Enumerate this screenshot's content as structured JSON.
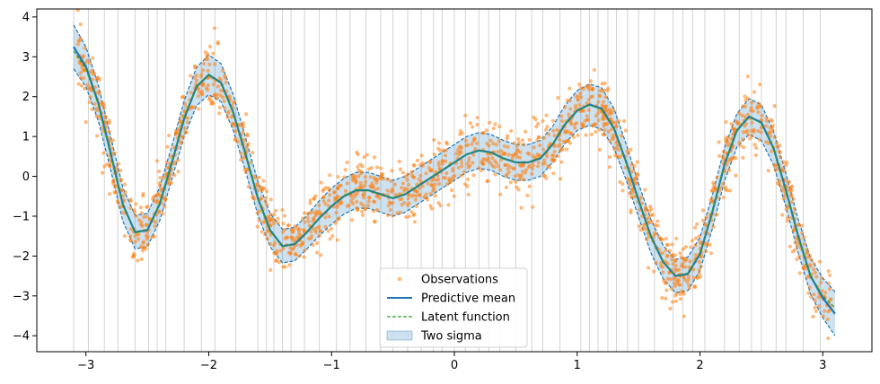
{
  "chart_data": {
    "type": "scatter",
    "title": "",
    "xlabel": "",
    "ylabel": "",
    "xlim": [
      -3.4,
      3.4
    ],
    "ylim": [
      -4.4,
      4.2
    ],
    "x_ticks": [
      -3,
      -2,
      -1,
      0,
      1,
      2,
      3
    ],
    "x_tick_labels": [
      "−3",
      "−2",
      "−1",
      "0",
      "1",
      "2",
      "3"
    ],
    "y_ticks": [
      -4,
      -3,
      -2,
      -1,
      0,
      1,
      2,
      3,
      4
    ],
    "y_tick_labels": [
      "−4",
      "−3",
      "−2",
      "−1",
      "0",
      "1",
      "2",
      "3",
      "4"
    ],
    "grid": false,
    "legend_position": "bottom-center",
    "colors": {
      "observations": "#ff7f0e",
      "mean": "#1f77b4",
      "latent": "#2ca02c",
      "band": "#1f77b4",
      "inducing_lines": "#9e9e9e"
    },
    "series": [
      {
        "name": "Observations",
        "kind": "scatter",
        "note": "dense noisy samples scattered around the latent function, approx. 2000 points"
      },
      {
        "name": "Predictive mean",
        "kind": "line",
        "x": [
          -3.1,
          -3.0,
          -2.9,
          -2.8,
          -2.7,
          -2.6,
          -2.5,
          -2.4,
          -2.3,
          -2.2,
          -2.1,
          -2.0,
          -1.9,
          -1.8,
          -1.7,
          -1.6,
          -1.5,
          -1.4,
          -1.3,
          -1.2,
          -1.1,
          -1.0,
          -0.9,
          -0.8,
          -0.7,
          -0.6,
          -0.5,
          -0.4,
          -0.3,
          -0.2,
          -0.1,
          0.0,
          0.1,
          0.2,
          0.3,
          0.4,
          0.5,
          0.6,
          0.7,
          0.8,
          0.9,
          1.0,
          1.1,
          1.2,
          1.3,
          1.4,
          1.5,
          1.6,
          1.7,
          1.8,
          1.9,
          2.0,
          2.1,
          2.2,
          2.3,
          2.4,
          2.5,
          2.6,
          2.7,
          2.8,
          2.9,
          3.0,
          3.1
        ],
        "y": [
          3.25,
          2.75,
          1.85,
          0.6,
          -0.7,
          -1.4,
          -1.35,
          -0.7,
          0.35,
          1.45,
          2.25,
          2.55,
          2.35,
          1.6,
          0.55,
          -0.55,
          -1.35,
          -1.75,
          -1.7,
          -1.4,
          -1.05,
          -0.75,
          -0.5,
          -0.35,
          -0.35,
          -0.45,
          -0.55,
          -0.45,
          -0.25,
          -0.05,
          0.15,
          0.35,
          0.55,
          0.65,
          0.6,
          0.45,
          0.35,
          0.35,
          0.45,
          0.8,
          1.3,
          1.65,
          1.8,
          1.7,
          1.2,
          0.35,
          -0.6,
          -1.5,
          -2.15,
          -2.5,
          -2.45,
          -1.95,
          -0.9,
          0.3,
          1.15,
          1.5,
          1.35,
          0.7,
          -0.35,
          -1.5,
          -2.5,
          -3.05,
          -3.45
        ]
      },
      {
        "name": "Latent function",
        "kind": "line",
        "style": "dashed",
        "x": [
          -3.1,
          -3.0,
          -2.9,
          -2.8,
          -2.7,
          -2.6,
          -2.5,
          -2.4,
          -2.3,
          -2.2,
          -2.1,
          -2.0,
          -1.9,
          -1.8,
          -1.7,
          -1.6,
          -1.5,
          -1.4,
          -1.3,
          -1.2,
          -1.1,
          -1.0,
          -0.9,
          -0.8,
          -0.7,
          -0.6,
          -0.5,
          -0.4,
          -0.3,
          -0.2,
          -0.1,
          0.0,
          0.1,
          0.2,
          0.3,
          0.4,
          0.5,
          0.6,
          0.7,
          0.8,
          0.9,
          1.0,
          1.1,
          1.2,
          1.3,
          1.4,
          1.5,
          1.6,
          1.7,
          1.8,
          1.9,
          2.0,
          2.1,
          2.2,
          2.3,
          2.4,
          2.5,
          2.6,
          2.7,
          2.8,
          2.9,
          3.0,
          3.1
        ],
        "y": [
          3.15,
          2.7,
          1.8,
          0.55,
          -0.72,
          -1.42,
          -1.33,
          -0.68,
          0.38,
          1.48,
          2.27,
          2.55,
          2.33,
          1.58,
          0.52,
          -0.57,
          -1.37,
          -1.76,
          -1.69,
          -1.39,
          -1.04,
          -0.74,
          -0.49,
          -0.34,
          -0.36,
          -0.46,
          -0.54,
          -0.44,
          -0.24,
          -0.04,
          0.16,
          0.36,
          0.56,
          0.64,
          0.59,
          0.44,
          0.34,
          0.36,
          0.47,
          0.82,
          1.32,
          1.66,
          1.79,
          1.68,
          1.18,
          0.33,
          -0.62,
          -1.52,
          -2.16,
          -2.49,
          -2.43,
          -1.93,
          -0.88,
          0.32,
          1.16,
          1.49,
          1.33,
          0.68,
          -0.37,
          -1.52,
          -2.48,
          -3.0,
          -3.3
        ]
      },
      {
        "name": "Two sigma",
        "kind": "band",
        "x": [
          -3.1,
          -3.0,
          -2.9,
          -2.8,
          -2.7,
          -2.6,
          -2.5,
          -2.4,
          -2.3,
          -2.2,
          -2.1,
          -2.0,
          -1.9,
          -1.8,
          -1.7,
          -1.6,
          -1.5,
          -1.4,
          -1.3,
          -1.2,
          -1.1,
          -1.0,
          -0.9,
          -0.8,
          -0.7,
          -0.6,
          -0.5,
          -0.4,
          -0.3,
          -0.2,
          -0.1,
          0.0,
          0.1,
          0.2,
          0.3,
          0.4,
          0.5,
          0.6,
          0.7,
          0.8,
          0.9,
          1.0,
          1.1,
          1.2,
          1.3,
          1.4,
          1.5,
          1.6,
          1.7,
          1.8,
          1.9,
          2.0,
          2.1,
          2.2,
          2.3,
          2.4,
          2.5,
          2.6,
          2.7,
          2.8,
          2.9,
          3.0,
          3.1
        ],
        "half_width": [
          0.55,
          0.5,
          0.45,
          0.42,
          0.42,
          0.42,
          0.42,
          0.42,
          0.42,
          0.45,
          0.48,
          0.5,
          0.48,
          0.45,
          0.42,
          0.42,
          0.42,
          0.42,
          0.42,
          0.42,
          0.44,
          0.45,
          0.45,
          0.45,
          0.45,
          0.45,
          0.45,
          0.45,
          0.45,
          0.45,
          0.45,
          0.45,
          0.45,
          0.45,
          0.45,
          0.45,
          0.45,
          0.45,
          0.45,
          0.45,
          0.48,
          0.5,
          0.52,
          0.52,
          0.5,
          0.45,
          0.42,
          0.42,
          0.42,
          0.42,
          0.42,
          0.42,
          0.42,
          0.42,
          0.42,
          0.45,
          0.45,
          0.42,
          0.42,
          0.42,
          0.45,
          0.5,
          0.55
        ]
      }
    ],
    "inducing_points_x": [
      -3.1,
      -2.98,
      -2.85,
      -2.74,
      -2.6,
      -2.49,
      -2.42,
      -2.35,
      -2.2,
      -2.06,
      -1.95,
      -1.78,
      -1.6,
      -1.53,
      -1.47,
      -1.4,
      -1.33,
      -1.22,
      -1.1,
      -0.96,
      -0.85,
      -0.72,
      -0.6,
      -0.5,
      -0.38,
      -0.27,
      -0.17,
      -0.1,
      0.0,
      0.09,
      0.2,
      0.28,
      0.37,
      0.5,
      0.63,
      0.72,
      0.86,
      1.03,
      1.1,
      1.17,
      1.25,
      1.32,
      1.41,
      1.5,
      1.63,
      1.78,
      1.86,
      1.94,
      2.04,
      2.2,
      2.32,
      2.42,
      2.5,
      2.62,
      2.7,
      2.84,
      2.98
    ],
    "legend": {
      "entries": [
        "Observations",
        "Predictive mean",
        "Latent function",
        "Two sigma"
      ]
    }
  }
}
